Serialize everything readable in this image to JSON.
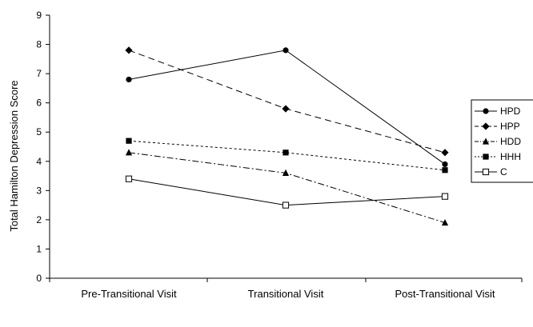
{
  "chart_data": {
    "type": "line",
    "title": "",
    "xlabel": "",
    "ylabel": "Total Hamilton Depression Score",
    "ylim": [
      0,
      9
    ],
    "yticks": [
      0,
      1,
      2,
      3,
      4,
      5,
      6,
      7,
      8,
      9
    ],
    "categories": [
      "Pre-Transitional Visit",
      "Transitional Visit",
      "Post-Transitional Visit"
    ],
    "grid": false,
    "legend_position": "right",
    "series": [
      {
        "name": "HPD",
        "values": [
          6.8,
          7.8,
          3.9
        ],
        "marker": "circle",
        "dash": "solid"
      },
      {
        "name": "HPP",
        "values": [
          7.8,
          5.8,
          4.3
        ],
        "marker": "diamond",
        "dash": "dashed"
      },
      {
        "name": "HDD",
        "values": [
          4.3,
          3.6,
          1.9
        ],
        "marker": "triangle",
        "dash": "dashdot"
      },
      {
        "name": "HHH",
        "values": [
          4.7,
          4.3,
          3.7
        ],
        "marker": "square",
        "dash": "dotted"
      },
      {
        "name": "C",
        "values": [
          3.4,
          2.5,
          2.8
        ],
        "marker": "open-square",
        "dash": "solid"
      }
    ],
    "colors": {
      "line": "#000000",
      "background": "#ffffff"
    }
  }
}
